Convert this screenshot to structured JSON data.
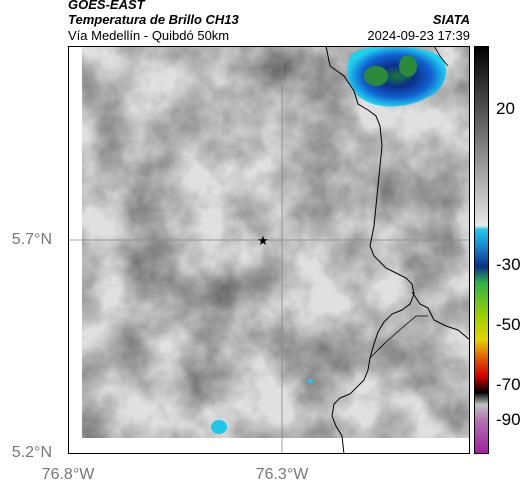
{
  "header": {
    "satellite": "GOES-EAST",
    "product": "Temperatura de Brillo CH13",
    "route": "Vía Medellín - Quibdó 50km",
    "agency": "SIATA",
    "datetime": "2024-09-23 17:39"
  },
  "axes": {
    "y_ticks": [
      {
        "label": "5.7°N",
        "value": 5.7
      },
      {
        "label": "5.2°N",
        "value": 5.2
      }
    ],
    "x_ticks": [
      {
        "label": "76.8°W",
        "value": -76.8
      },
      {
        "label": "76.3°W",
        "value": -76.3
      }
    ]
  },
  "colorbar": {
    "ticks": [
      "20",
      "-30",
      "-50",
      "-70",
      "-90"
    ],
    "colors": {
      "warm_gray": "#d4d4d4",
      "cold_blue": "#0a3a9a",
      "cyan": "#19c8e6",
      "green": "#2bb34a",
      "yellow": "#e6d000",
      "red": "#d40000",
      "black": "#000000",
      "magenta": "#c040c0"
    }
  },
  "map": {
    "marker": "star-icon",
    "gridlines": true
  }
}
